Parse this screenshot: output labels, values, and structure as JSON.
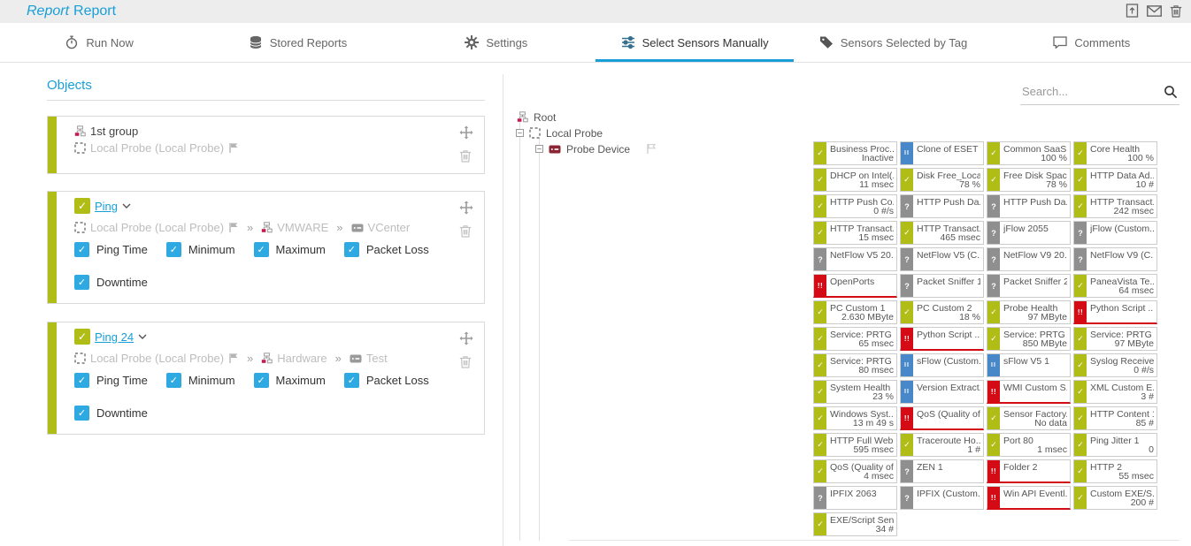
{
  "colors": {
    "accent": "#189fd7",
    "status_up": "#b0bd16",
    "status_paused": "#4887c8",
    "status_unknown": "#8f8f8f",
    "status_down": "#d40b15",
    "checkbox_blue": "#2fa9e1"
  },
  "header": {
    "title_type": "Report",
    "title_name": "Report",
    "actions": [
      {
        "icon": "add-report-icon"
      },
      {
        "icon": "email-icon"
      },
      {
        "icon": "delete-report-icon"
      }
    ]
  },
  "tabs": [
    {
      "label": "Run Now",
      "icon": "stopwatch-icon",
      "active": false
    },
    {
      "label": "Stored Reports",
      "icon": "database-icon",
      "active": false
    },
    {
      "label": "Settings",
      "icon": "gear-icon",
      "active": false
    },
    {
      "label": "Select Sensors Manually",
      "icon": "sliders-icon",
      "active": true
    },
    {
      "label": "Sensors Selected by Tag",
      "icon": "tag-icon",
      "active": false
    },
    {
      "label": "Comments",
      "icon": "comment-icon",
      "active": false
    }
  ],
  "objects_panel": {
    "heading": "Objects",
    "cards": [
      {
        "type": "group",
        "title": "1st group",
        "path": [
          {
            "icon": "probe-icon",
            "text": "Local Probe (Local Probe)",
            "flag": true
          }
        ],
        "channel_rows": []
      },
      {
        "type": "sensor",
        "checked": true,
        "title": "Ping",
        "path": [
          {
            "icon": "probe-icon",
            "text": "Local Probe (Local Probe)",
            "flag": true
          },
          {
            "icon": "group-icon",
            "text": "VMWARE"
          },
          {
            "icon": "device-gray-icon",
            "text": "VCenter"
          }
        ],
        "channel_rows": [
          [
            "Ping Time",
            "Minimum",
            "Maximum",
            "Packet Loss"
          ],
          [
            "Downtime"
          ]
        ]
      },
      {
        "type": "sensor",
        "checked": true,
        "title": "Ping 24",
        "path": [
          {
            "icon": "probe-icon",
            "text": "Local Probe (Local Probe)",
            "flag": true
          },
          {
            "icon": "group-icon",
            "text": "Hardware"
          },
          {
            "icon": "device-gray-icon",
            "text": "Test"
          }
        ],
        "channel_rows": [
          [
            "Ping Time",
            "Minimum",
            "Maximum",
            "Packet Loss"
          ],
          [
            "Downtime"
          ]
        ]
      }
    ]
  },
  "sensor_panel": {
    "search_placeholder": "Search...",
    "tree": [
      {
        "label": "Root",
        "icon": "group-icon",
        "expand": false,
        "flag": false
      },
      {
        "label": "Local Probe",
        "icon": "probe-icon",
        "expand": true,
        "flag": false
      },
      {
        "label": "Probe Device",
        "icon": "device-icon",
        "expand": true,
        "flag": true
      }
    ],
    "sensors": [
      {
        "s": "up",
        "t": "Business Proc...",
        "v": "Inactive"
      },
      {
        "s": "paused",
        "t": "Clone of ESET ...",
        "v": ""
      },
      {
        "s": "up",
        "t": "Common SaaS...",
        "v": "100 %"
      },
      {
        "s": "up",
        "t": "Core Health",
        "v": "100 %"
      },
      {
        "s": "up",
        "t": "DHCP on Intel(...",
        "v": "11 msec"
      },
      {
        "s": "up",
        "t": "Disk Free_Local",
        "v": "78 %"
      },
      {
        "s": "up",
        "t": "Free Disk Spac...",
        "v": "78 %"
      },
      {
        "s": "up",
        "t": "HTTP Data Ad...",
        "v": "10 #"
      },
      {
        "s": "up",
        "t": "HTTP Push Co...",
        "v": "0 #/s"
      },
      {
        "s": "unknown",
        "t": "HTTP Push Da...",
        "v": ""
      },
      {
        "s": "unknown",
        "t": "HTTP Push Da...",
        "v": ""
      },
      {
        "s": "up",
        "t": "HTTP Transact...",
        "v": "242 msec"
      },
      {
        "s": "up",
        "t": "HTTP Transact...",
        "v": "15 msec"
      },
      {
        "s": "up",
        "t": "HTTP Transact...",
        "v": "465 msec"
      },
      {
        "s": "unknown",
        "t": "jFlow 2055",
        "v": ""
      },
      {
        "s": "unknown",
        "t": "jFlow (Custom...",
        "v": ""
      },
      {
        "s": "unknown",
        "t": "NetFlow V5 20...",
        "v": ""
      },
      {
        "s": "unknown",
        "t": "NetFlow V5 (C...",
        "v": ""
      },
      {
        "s": "unknown",
        "t": "NetFlow V9 20...",
        "v": ""
      },
      {
        "s": "unknown",
        "t": "NetFlow V9 (C...",
        "v": ""
      },
      {
        "s": "down",
        "t": "OpenPorts",
        "v": ""
      },
      {
        "s": "unknown",
        "t": "Packet Sniffer 1",
        "v": ""
      },
      {
        "s": "unknown",
        "t": "Packet Sniffer 2",
        "v": ""
      },
      {
        "s": "up",
        "t": "PaneaVista Te...",
        "v": "64 msec"
      },
      {
        "s": "up",
        "t": "PC Custom 1",
        "v": "2.630 MByte"
      },
      {
        "s": "up",
        "t": "PC Custom 2",
        "v": "18 %"
      },
      {
        "s": "up",
        "t": "Probe Health",
        "v": "97 MByte"
      },
      {
        "s": "down",
        "t": "Python Script ...",
        "v": ""
      },
      {
        "s": "up",
        "t": "Service: PRTG ...",
        "v": "65 msec"
      },
      {
        "s": "down",
        "t": "Python Script ...",
        "v": ""
      },
      {
        "s": "up",
        "t": "Service: PRTG ...",
        "v": "850 MByte"
      },
      {
        "s": "up",
        "t": "Service: PRTG ...",
        "v": "97 MByte"
      },
      {
        "s": "up",
        "t": "Service: PRTG ...",
        "v": "80 msec"
      },
      {
        "s": "paused",
        "t": "sFlow (Custom...",
        "v": ""
      },
      {
        "s": "paused",
        "t": "sFlow V5 1",
        "v": ""
      },
      {
        "s": "up",
        "t": "Syslog Receive...",
        "v": "0 #/s"
      },
      {
        "s": "up",
        "t": "System Health",
        "v": "23 %"
      },
      {
        "s": "paused",
        "t": "Version Extract...",
        "v": ""
      },
      {
        "s": "down",
        "t": "WMI Custom S...",
        "v": ""
      },
      {
        "s": "up",
        "t": "XML Custom E...",
        "v": "3 #"
      },
      {
        "s": "up",
        "t": "Windows Syst...",
        "v": "13 m 49 s"
      },
      {
        "s": "down",
        "t": "QoS (Quality of...",
        "v": ""
      },
      {
        "s": "up",
        "t": "Sensor Factory...",
        "v": "No data"
      },
      {
        "s": "up",
        "t": "HTTP Content 1",
        "v": "85 #"
      },
      {
        "s": "up",
        "t": "HTTP Full Web...",
        "v": "595 msec"
      },
      {
        "s": "up",
        "t": "Traceroute Ho...",
        "v": "1 #"
      },
      {
        "s": "up",
        "t": "Port 80",
        "v": "1 msec"
      },
      {
        "s": "up",
        "t": "Ping Jitter 1",
        "v": "0"
      },
      {
        "s": "up",
        "t": "QoS (Quality of...",
        "v": "4 msec"
      },
      {
        "s": "unknown",
        "t": "ZEN 1",
        "v": ""
      },
      {
        "s": "down",
        "t": "Folder 2",
        "v": ""
      },
      {
        "s": "up",
        "t": "HTTP 2",
        "v": "55 msec"
      },
      {
        "s": "unknown",
        "t": "IPFIX 2063",
        "v": ""
      },
      {
        "s": "unknown",
        "t": "IPFIX (Custom...",
        "v": ""
      },
      {
        "s": "down",
        "t": "Win API Eventl...",
        "v": ""
      },
      {
        "s": "up",
        "t": "Custom EXE/S...",
        "v": "200 #"
      },
      {
        "s": "up",
        "t": "EXE/Script Sen...",
        "v": "34 #"
      }
    ]
  }
}
